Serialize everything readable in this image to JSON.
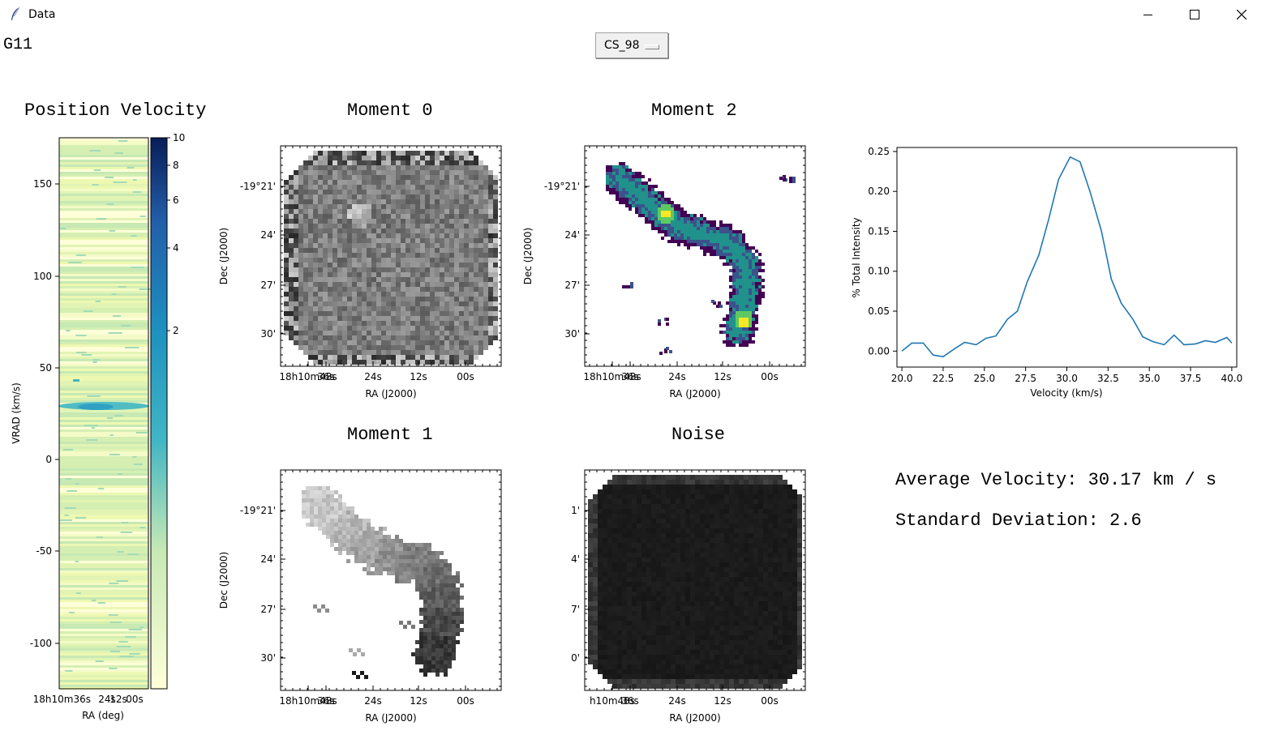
{
  "window": {
    "title": "Data"
  },
  "source_label": "G11",
  "dropdown": {
    "selected": "CS_98"
  },
  "panels": {
    "pv_title": "Position Velocity",
    "mom0_title": "Moment 0",
    "mom2_title": "Moment 2",
    "mom1_title": "Moment 1",
    "noise_title": "Noise"
  },
  "pv": {
    "yticks": [
      "150",
      "100",
      "50",
      "0",
      "-50",
      "-100"
    ],
    "ylabel": "VRAD (km/s)",
    "xtick_main": "18h10m36s",
    "xtick_sub": [
      "24s",
      "12s",
      "00s"
    ],
    "xlabel": "RA (deg)",
    "colorbar_ticks": [
      "10",
      "8",
      "6",
      "4",
      "2"
    ]
  },
  "maps": {
    "ra_ticks": [
      "18h10m48s",
      "36s",
      "24s",
      "12s",
      "00s"
    ],
    "dec_ticks": [
      "-19°21'",
      "24'",
      "27'",
      "30'"
    ],
    "noise_dec_ticks": [
      "1'",
      "4'",
      "7'",
      "0'"
    ],
    "noise_ra_first": "h10m48s",
    "xlabel": "RA (J2000)",
    "ylabel": "Dec (J2000)"
  },
  "stats": {
    "avg_velocity": "Average Velocity: 30.17 km / s",
    "std_dev": "Standard Deviation: 2.6"
  },
  "chart_data": {
    "type": "line",
    "xlabel": "Velocity (km/s)",
    "ylabel": "% Total Intensity",
    "xlim": [
      19.7,
      40.3
    ],
    "ylim": [
      -0.02,
      0.255
    ],
    "xticks": [
      "20.0",
      "22.5",
      "25.0",
      "27.5",
      "30.0",
      "32.5",
      "35.0",
      "37.5",
      "40.0"
    ],
    "yticks": [
      "0.00",
      "0.05",
      "0.10",
      "0.15",
      "0.20",
      "0.25"
    ],
    "x": [
      20.0,
      20.6,
      21.3,
      21.9,
      22.5,
      23.2,
      23.8,
      24.5,
      25.1,
      25.7,
      26.4,
      27.0,
      27.6,
      28.3,
      28.9,
      29.5,
      30.2,
      30.8,
      31.4,
      32.1,
      32.7,
      33.3,
      34.0,
      34.6,
      35.2,
      35.9,
      36.5,
      37.1,
      37.8,
      38.4,
      39.0,
      39.7,
      40.0
    ],
    "y": [
      0.0,
      0.01,
      0.01,
      -0.005,
      -0.007,
      0.003,
      0.011,
      0.008,
      0.016,
      0.019,
      0.04,
      0.05,
      0.087,
      0.12,
      0.165,
      0.215,
      0.243,
      0.237,
      0.2,
      0.15,
      0.09,
      0.06,
      0.04,
      0.018,
      0.012,
      0.008,
      0.02,
      0.008,
      0.009,
      0.013,
      0.011,
      0.017,
      0.01
    ]
  },
  "colors": {
    "line": "#1f77b4"
  }
}
